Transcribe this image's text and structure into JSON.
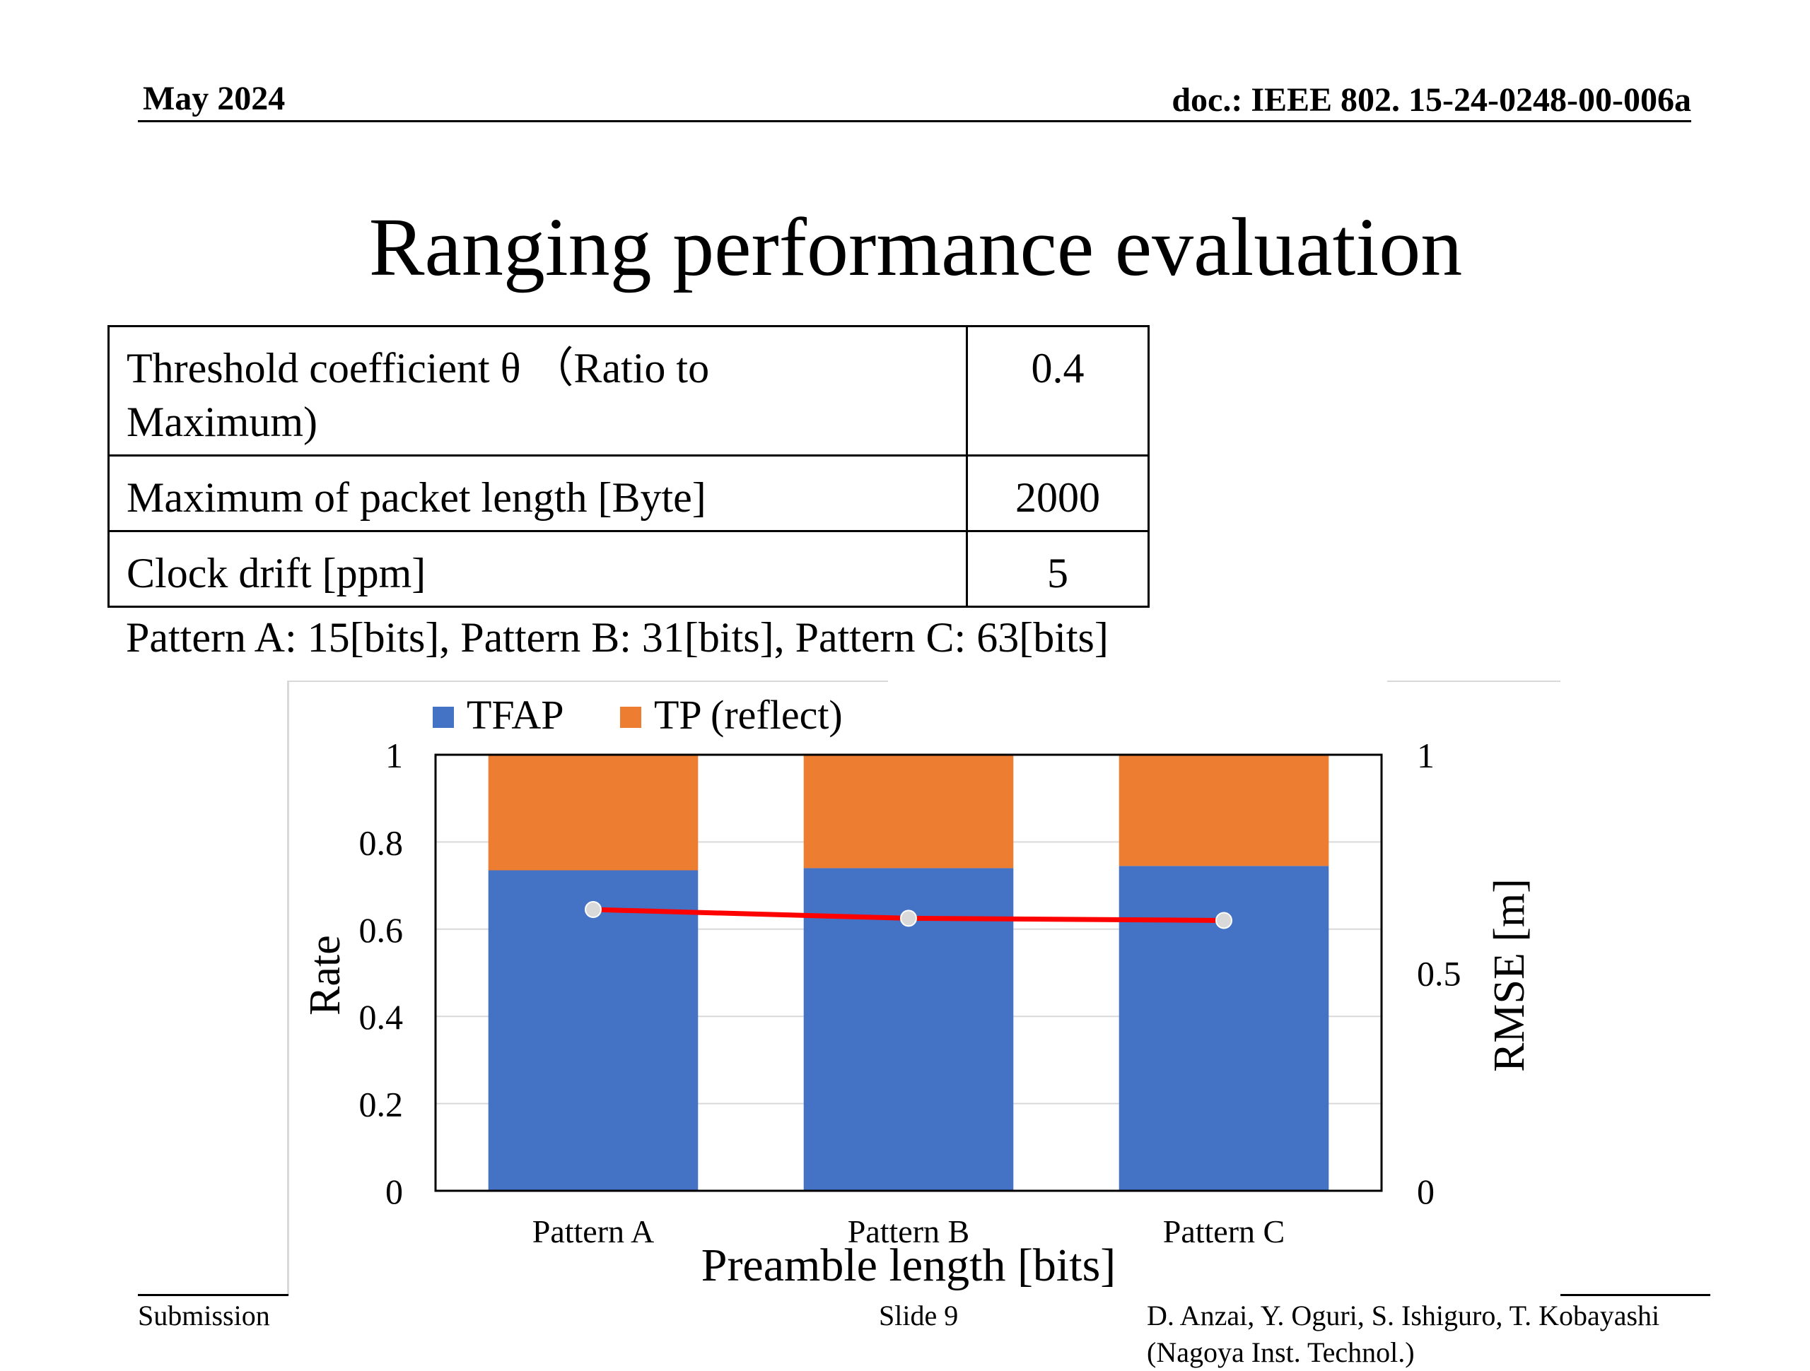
{
  "header": {
    "date": "May 2024",
    "doc_id": "doc.: IEEE 802. 15-24-0248-00-006a"
  },
  "slide_title": "Ranging performance evaluation",
  "params_table": {
    "rows": [
      {
        "label_line1": "Threshold coefficient θ （Ratio to",
        "label_line2": "Maximum)",
        "value": "0.4"
      },
      {
        "label_line1": "Maximum of packet length [Byte]",
        "label_line2": "",
        "value": "2000"
      },
      {
        "label_line1": "Clock drift [ppm]",
        "label_line2": "",
        "value": "5"
      }
    ]
  },
  "pattern_note": "Pattern A: 15[bits], Pattern B: 31[bits], Pattern C: 63[bits]",
  "chart_data": {
    "type": "bar",
    "stacked": true,
    "categories": [
      "Pattern A",
      "Pattern B",
      "Pattern C"
    ],
    "series": [
      {
        "name": "TFAP",
        "values": [
          0.735,
          0.74,
          0.745
        ],
        "color": "#4472C4",
        "axis": "left"
      },
      {
        "name": "TP (reflect)",
        "values": [
          0.265,
          0.26,
          0.255
        ],
        "color": "#ED7D31",
        "axis": "left"
      }
    ],
    "line_series": [
      {
        "values": [
          0.645,
          0.625,
          0.62
        ],
        "color": "#FF0000",
        "marker_color": "#D9D9D9",
        "axis": "right"
      }
    ],
    "xlabel": "Preamble length [bits]",
    "ylabel": "Rate",
    "y2label": "RMSE [m]",
    "ylim": [
      0,
      1
    ],
    "y2lim": [
      0,
      1
    ],
    "yticks": [
      "0",
      "0.2",
      "0.4",
      "0.6",
      "0.8",
      "1"
    ],
    "y2ticks": [
      "0",
      "0.5",
      "1"
    ],
    "grid": true,
    "legend_position": "top-left"
  },
  "footer": {
    "submission": "Submission",
    "slide": "Slide 9",
    "authors_line1": "D. Anzai, Y. Oguri, S. Ishiguro,  T. Kobayashi",
    "authors_line2": "(Nagoya Inst. Technol.)"
  }
}
